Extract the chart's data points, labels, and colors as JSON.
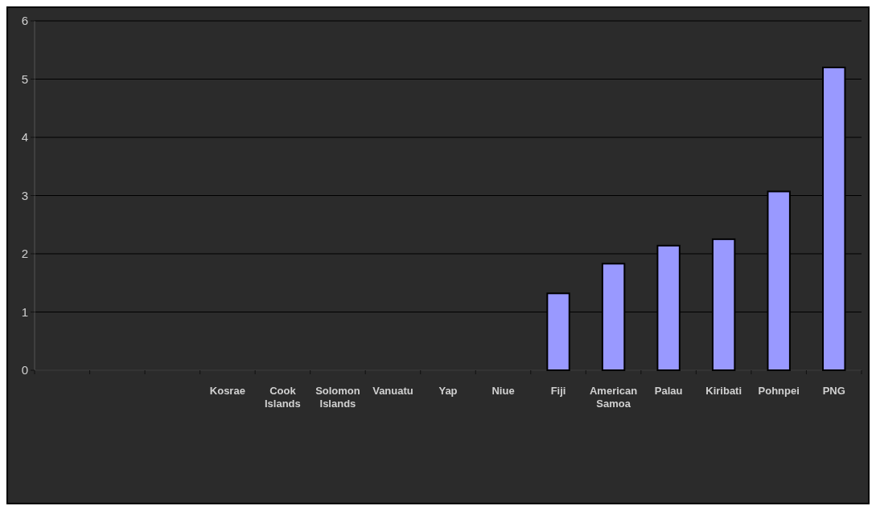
{
  "chart_data": {
    "type": "bar",
    "categories": [
      null,
      null,
      null,
      "Kosrae",
      "Cook Islands",
      "Solomon Islands",
      "Vanuatu",
      "Yap",
      "Niue",
      "Fiji",
      "American Samoa",
      "Palau",
      "Kiribati",
      "Pohnpei",
      "PNG"
    ],
    "values": [
      null,
      null,
      null,
      null,
      null,
      null,
      null,
      null,
      null,
      1.32,
      1.83,
      2.14,
      2.25,
      3.07,
      5.2
    ],
    "color": "#9999ff",
    "ylim": [
      0,
      6
    ],
    "yticks": [
      0,
      1,
      2,
      3,
      4,
      5,
      6
    ],
    "grid": "y"
  }
}
